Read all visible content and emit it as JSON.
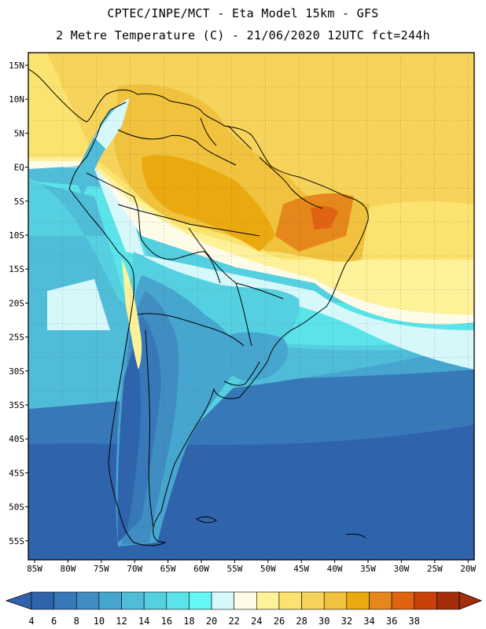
{
  "header": {
    "line1": "CPTEC/INPE/MCT -  Eta Model 15km - GFS",
    "line2": "2 Metre Temperature (C) - 21/06/2020 12UTC fct=244h"
  },
  "axes": {
    "lat_labels": [
      "15N",
      "10N",
      "5N",
      "EQ",
      "5S",
      "10S",
      "15S",
      "20S",
      "25S",
      "30S",
      "35S",
      "40S",
      "45S",
      "50S",
      "55S"
    ],
    "lon_labels": [
      "85W",
      "80W",
      "75W",
      "70W",
      "65W",
      "60W",
      "55W",
      "50W",
      "45W",
      "40W",
      "35W",
      "30W",
      "25W",
      "20W"
    ]
  },
  "colorbar": {
    "labels": [
      "4",
      "6",
      "8",
      "10",
      "12",
      "14",
      "16",
      "18",
      "20",
      "22",
      "24",
      "26",
      "28",
      "30",
      "32",
      "34",
      "36",
      "38"
    ],
    "colors": [
      "#2f64ad",
      "#3779b8",
      "#3f8dc3",
      "#47a6cf",
      "#4fbcd8",
      "#55d0e0",
      "#5ae4e9",
      "#63f7f5",
      "#d6f8fb",
      "#fefbe8",
      "#fdf19a",
      "#fbe370",
      "#f6d35a",
      "#f0c23d",
      "#eaa90f",
      "#e5871a",
      "#df6310",
      "#c9410a",
      "#a52d08"
    ],
    "under_color": "#2f64ad",
    "over_color": "#a52d08"
  }
}
